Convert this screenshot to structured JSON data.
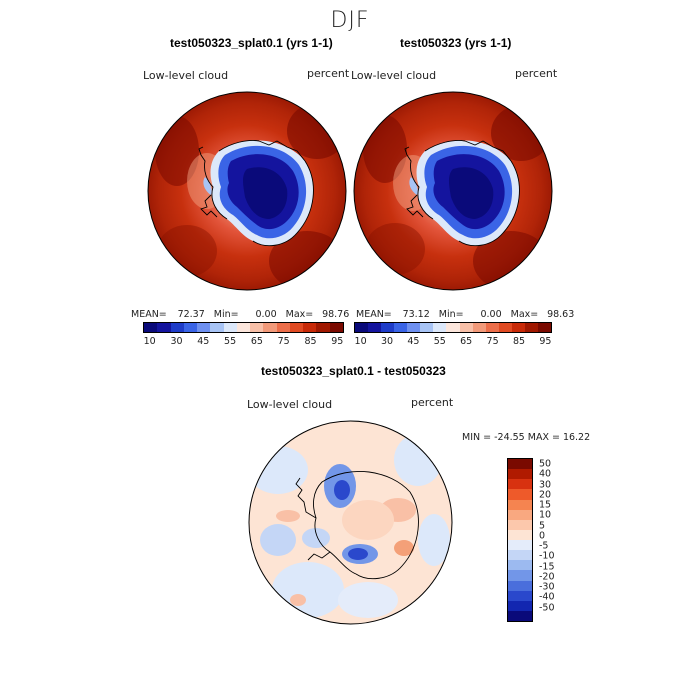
{
  "figure": {
    "title": "DJF"
  },
  "panels": [
    {
      "title": "test050323_splat0.1 (yrs 1-1)",
      "variable": "Low-level cloud",
      "units": "percent",
      "stats": {
        "mean_label": "MEAN=",
        "mean": "72.37",
        "min_label": "Min=",
        "min": "0.00",
        "max_label": "Max=",
        "max": "98.76"
      }
    },
    {
      "title": "test050323 (yrs 1-1)",
      "variable": "Low-level cloud",
      "units": "percent",
      "stats": {
        "mean_label": "MEAN=",
        "mean": "73.12",
        "min_label": "Min=",
        "min": "0.00",
        "max_label": "Max=",
        "max": "98.63"
      }
    }
  ],
  "difference": {
    "title": "test050323_splat0.1 - test050323",
    "variable": "Low-level cloud",
    "units": "percent",
    "minmax_text": "MIN = -24.55 MAX =  16.22"
  },
  "colorbar_top": {
    "colors": [
      "#0a0a7a",
      "#14149e",
      "#1e3cc8",
      "#3a64e6",
      "#6e90f0",
      "#a8c4f5",
      "#dce8fa",
      "#fce6dc",
      "#f8c0a8",
      "#f29a7a",
      "#ec6e4a",
      "#e04a22",
      "#c82a08",
      "#a01800",
      "#7a0a00"
    ],
    "tick_labels": [
      "10",
      "30",
      "45",
      "55",
      "65",
      "75",
      "85",
      "95"
    ]
  },
  "colorbar_diff": {
    "colors": [
      "#7a0a00",
      "#b01a00",
      "#d83210",
      "#ee5a2a",
      "#f58450",
      "#f9a880",
      "#fcc8ac",
      "#fde4d4",
      "#e4ecfa",
      "#c4d6f6",
      "#9cbaf0",
      "#7296e8",
      "#4a6edc",
      "#2a48cc",
      "#1226b0",
      "#0a0a7a"
    ],
    "tick_labels": [
      "50",
      "40",
      "30",
      "20",
      "15",
      "10",
      "5",
      "0",
      "-5",
      "-10",
      "-15",
      "-20",
      "-30",
      "-40",
      "-50"
    ]
  }
}
